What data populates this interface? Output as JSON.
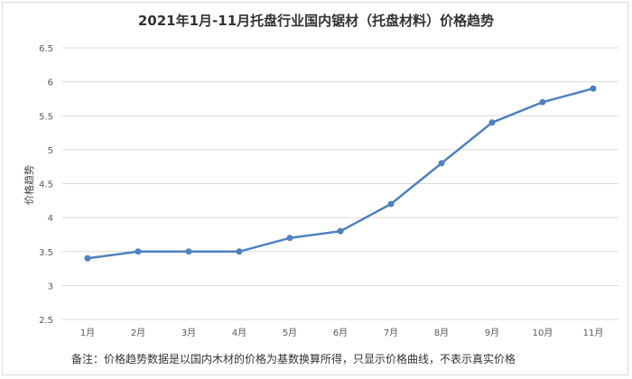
{
  "chart_data": {
    "type": "line",
    "title": "2021年1月-11月托盘行业国内锯材（托盘材料）价格趋势",
    "ylabel": "价格趋势",
    "xlabel": "",
    "categories": [
      "1月",
      "2月",
      "3月",
      "4月",
      "5月",
      "6月",
      "7月",
      "8月",
      "9月",
      "10月",
      "11月"
    ],
    "series": [
      {
        "values": [
          3.4,
          3.5,
          3.5,
          3.5,
          3.7,
          3.8,
          4.2,
          4.8,
          5.4,
          5.7,
          5.9
        ]
      }
    ],
    "yticks": [
      "2.5",
      "3",
      "3.5",
      "4",
      "4.5",
      "5",
      "5.5",
      "6",
      "6.5"
    ],
    "ylim": [
      2.5,
      6.5
    ],
    "grid": true,
    "legend": "none",
    "colors": {
      "line": "#4f81bd",
      "grid": "#d9d9d9"
    }
  },
  "footnote": "备注：价格趋势数据是以国内木材的价格为基数换算所得，只显示价格曲线，不表示真实价格"
}
